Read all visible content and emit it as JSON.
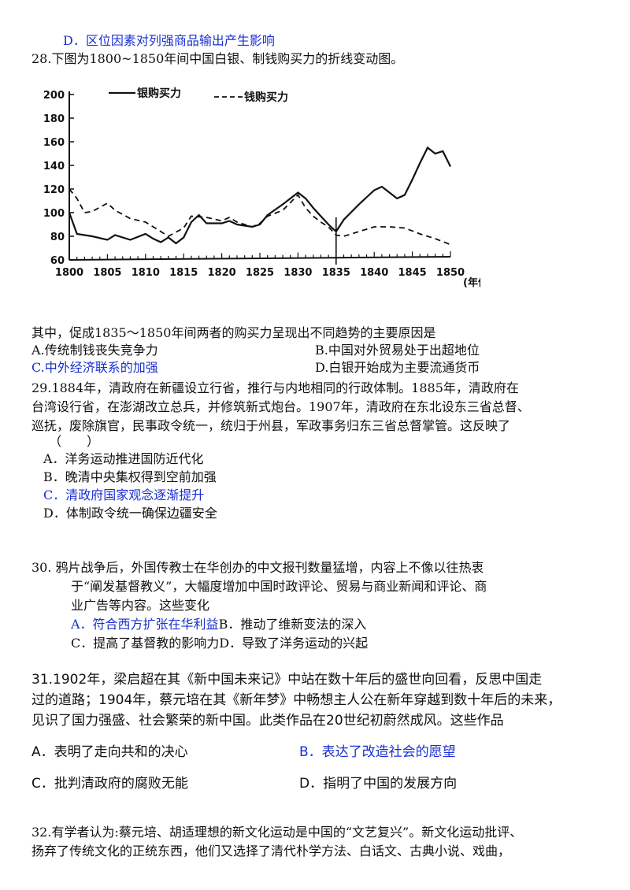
{
  "q27": {
    "option_d": "D．区位因素对列强商品输出产生影响"
  },
  "q28": {
    "stem": "28.下图为1800~1850年间中国白银、制钱购买力的折线变动图。",
    "question": "其中，促成1835～1850年间两者的购买力呈现出不同趋势的主要原因是",
    "options": {
      "a": "A.传统制钱丧失竞争力",
      "b": "B.中国对外贸易处于出超地位",
      "c": "C.中外经济联系的加强",
      "d": "D.白银开始成为主要流通货币"
    }
  },
  "chart_data": {
    "type": "line",
    "title": "",
    "xlabel": "(年份)",
    "ylabel": "",
    "x_ticks": [
      "1800",
      "1805",
      "1810",
      "1815",
      "1820",
      "1825",
      "1830",
      "1835",
      "1840",
      "1845",
      "1850"
    ],
    "y_ticks": [
      "60",
      "80",
      "100",
      "120",
      "140",
      "160",
      "180",
      "200"
    ],
    "xlim": [
      1800,
      1850
    ],
    "ylim": [
      60,
      200
    ],
    "legend_position": "top",
    "series": [
      {
        "name": "银购买力",
        "style": "solid",
        "points": [
          [
            1800,
            100
          ],
          [
            1801,
            82
          ],
          [
            1803,
            80
          ],
          [
            1805,
            77
          ],
          [
            1806,
            81
          ],
          [
            1808,
            77
          ],
          [
            1810,
            82
          ],
          [
            1811,
            78
          ],
          [
            1812,
            75
          ],
          [
            1813,
            79
          ],
          [
            1814,
            74
          ],
          [
            1815,
            79
          ],
          [
            1816,
            92
          ],
          [
            1817,
            98
          ],
          [
            1818,
            91
          ],
          [
            1820,
            91
          ],
          [
            1821,
            93
          ],
          [
            1822,
            90
          ],
          [
            1824,
            88
          ],
          [
            1825,
            90
          ],
          [
            1826,
            98
          ],
          [
            1828,
            107
          ],
          [
            1829,
            112
          ],
          [
            1830,
            117
          ],
          [
            1831,
            112
          ],
          [
            1832,
            104
          ],
          [
            1833,
            97
          ],
          [
            1834,
            90
          ],
          [
            1835,
            84
          ],
          [
            1836,
            94
          ],
          [
            1838,
            107
          ],
          [
            1839,
            113
          ],
          [
            1840,
            119
          ],
          [
            1841,
            122
          ],
          [
            1842,
            117
          ],
          [
            1843,
            112
          ],
          [
            1844,
            115
          ],
          [
            1845,
            128
          ],
          [
            1846,
            142
          ],
          [
            1847,
            155
          ],
          [
            1848,
            150
          ],
          [
            1849,
            152
          ],
          [
            1850,
            139
          ]
        ]
      },
      {
        "name": "钱购买力",
        "style": "dashed",
        "points": [
          [
            1800,
            120
          ],
          [
            1801,
            112
          ],
          [
            1802,
            100
          ],
          [
            1803,
            101
          ],
          [
            1805,
            108
          ],
          [
            1806,
            102
          ],
          [
            1808,
            95
          ],
          [
            1810,
            92
          ],
          [
            1812,
            84
          ],
          [
            1813,
            80
          ],
          [
            1815,
            87
          ],
          [
            1816,
            97
          ],
          [
            1818,
            96
          ],
          [
            1820,
            93
          ],
          [
            1821,
            96
          ],
          [
            1822,
            92
          ],
          [
            1824,
            88
          ],
          [
            1825,
            91
          ],
          [
            1826,
            97
          ],
          [
            1828,
            102
          ],
          [
            1830,
            115
          ],
          [
            1831,
            104
          ],
          [
            1832,
            97
          ],
          [
            1833,
            92
          ],
          [
            1834,
            88
          ],
          [
            1835,
            81
          ],
          [
            1836,
            80
          ],
          [
            1838,
            84
          ],
          [
            1840,
            88
          ],
          [
            1842,
            88
          ],
          [
            1844,
            87
          ],
          [
            1846,
            82
          ],
          [
            1848,
            78
          ],
          [
            1850,
            73
          ]
        ]
      }
    ]
  },
  "q29": {
    "line1": "29.1884年，清政府在新疆设立行省，推行与内地相同的行政体制。1885年，清政府在",
    "line2": "台湾设行省，在澎湖改立总兵，并修筑新式炮台。1907年，清政府在东北设东三省总督、",
    "line3": "巡抚，废除旗官，民事政令统一，统归于州县，军政事务归东三省总督掌管。这反映了",
    "paren": "（　　）",
    "options": {
      "a": "A．洋务运动推进国防近代化",
      "b": "B．晚清中央集权得到空前加强",
      "c": "C．清政府国家观念逐渐提升",
      "d": "D．体制政令统一确保边疆安全"
    }
  },
  "q30": {
    "line1": "30. 鸦片战争后，外国传教士在华创办的中文报刊数量猛增，内容上不像以往热衷",
    "line2": "于“阐发基督教义”，大幅度增加中国时政评论、贸易与商业新闻和评论、商",
    "line3": "业广告等内容。这些变化",
    "options": {
      "a": "A．符合西方扩张在华利益",
      "b": "B．推动了维新变法的深入",
      "c": "C．提高了基督教的影响力",
      "d": "D．导致了洋务运动的兴起"
    }
  },
  "q31": {
    "line1": "31.1902年，梁启超在其《新中国未来记》中站在数十年后的盛世向回看，反思中国走",
    "line2": "过的道路；1904年，蔡元培在其《新年梦》中畅想主人公在新年穿越到数十年后的未来，",
    "line3": "见识了国力强盛、社会繁荣的新中国。此类作品在20世纪初蔚然成风。这些作品",
    "options": {
      "a": "A．表明了走向共和的决心",
      "b": "B．表达了改造社会的愿望",
      "c": "C．批判清政府的腐败无能",
      "d": "D．指明了中国的发展方向"
    }
  },
  "q32": {
    "line1": "32.有学者认为:蔡元培、胡适理想的新文化运动是中国的“文艺复兴”。新文化运动批评、",
    "line2": "扬弃了传统文化的正统东西，他们又选择了清代朴学方法、白话文、古典小说、戏曲，"
  }
}
